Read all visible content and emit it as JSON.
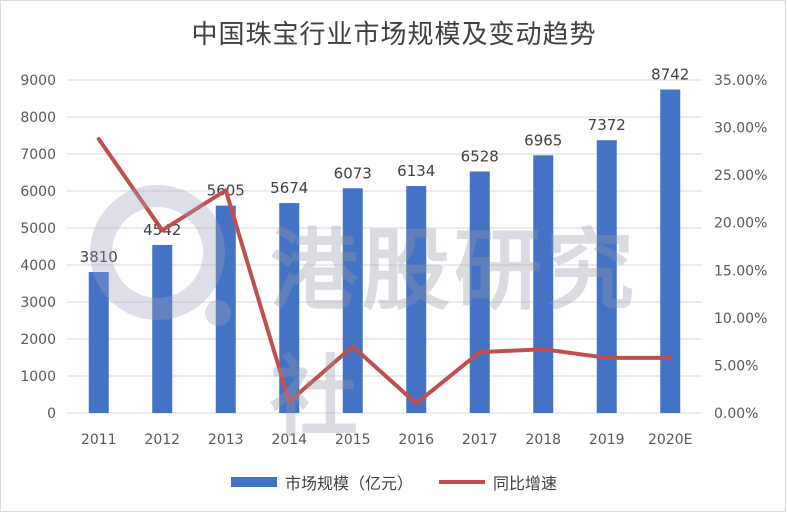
{
  "chart_data": {
    "type": "bar",
    "title": "中国珠宝行业市场规模及变动趋势",
    "categories": [
      "2011",
      "2012",
      "2013",
      "2014",
      "2015",
      "2016",
      "2017",
      "2018",
      "2019",
      "2020E"
    ],
    "series": [
      {
        "name": "市场规模（亿元）",
        "type": "bar",
        "axis": "left",
        "color": "#4472c4",
        "values": [
          3810,
          4542,
          5605,
          5674,
          6073,
          6134,
          6528,
          6965,
          7372,
          8742
        ]
      },
      {
        "name": "同比增速",
        "type": "line",
        "axis": "right",
        "color": "#c0504d",
        "values": [
          28.8,
          19.2,
          23.4,
          1.2,
          7.0,
          1.0,
          6.4,
          6.7,
          5.8,
          5.8
        ]
      }
    ],
    "data_labels": [
      "3810",
      "4542",
      "5605",
      "5674",
      "6073",
      "6134",
      "6528",
      "6965",
      "7372",
      "8742"
    ],
    "y_left": {
      "min": 0,
      "max": 9000,
      "ticks": [
        "0",
        "1000",
        "2000",
        "3000",
        "4000",
        "5000",
        "6000",
        "7000",
        "8000",
        "9000"
      ]
    },
    "y_right": {
      "min": 0,
      "max": 35,
      "ticks": [
        "0.00%",
        "5.00%",
        "10.00%",
        "15.00%",
        "20.00%",
        "25.00%",
        "30.00%",
        "35.00%"
      ]
    },
    "legend_position": "bottom",
    "grid": true
  },
  "watermark": "港股研究社"
}
